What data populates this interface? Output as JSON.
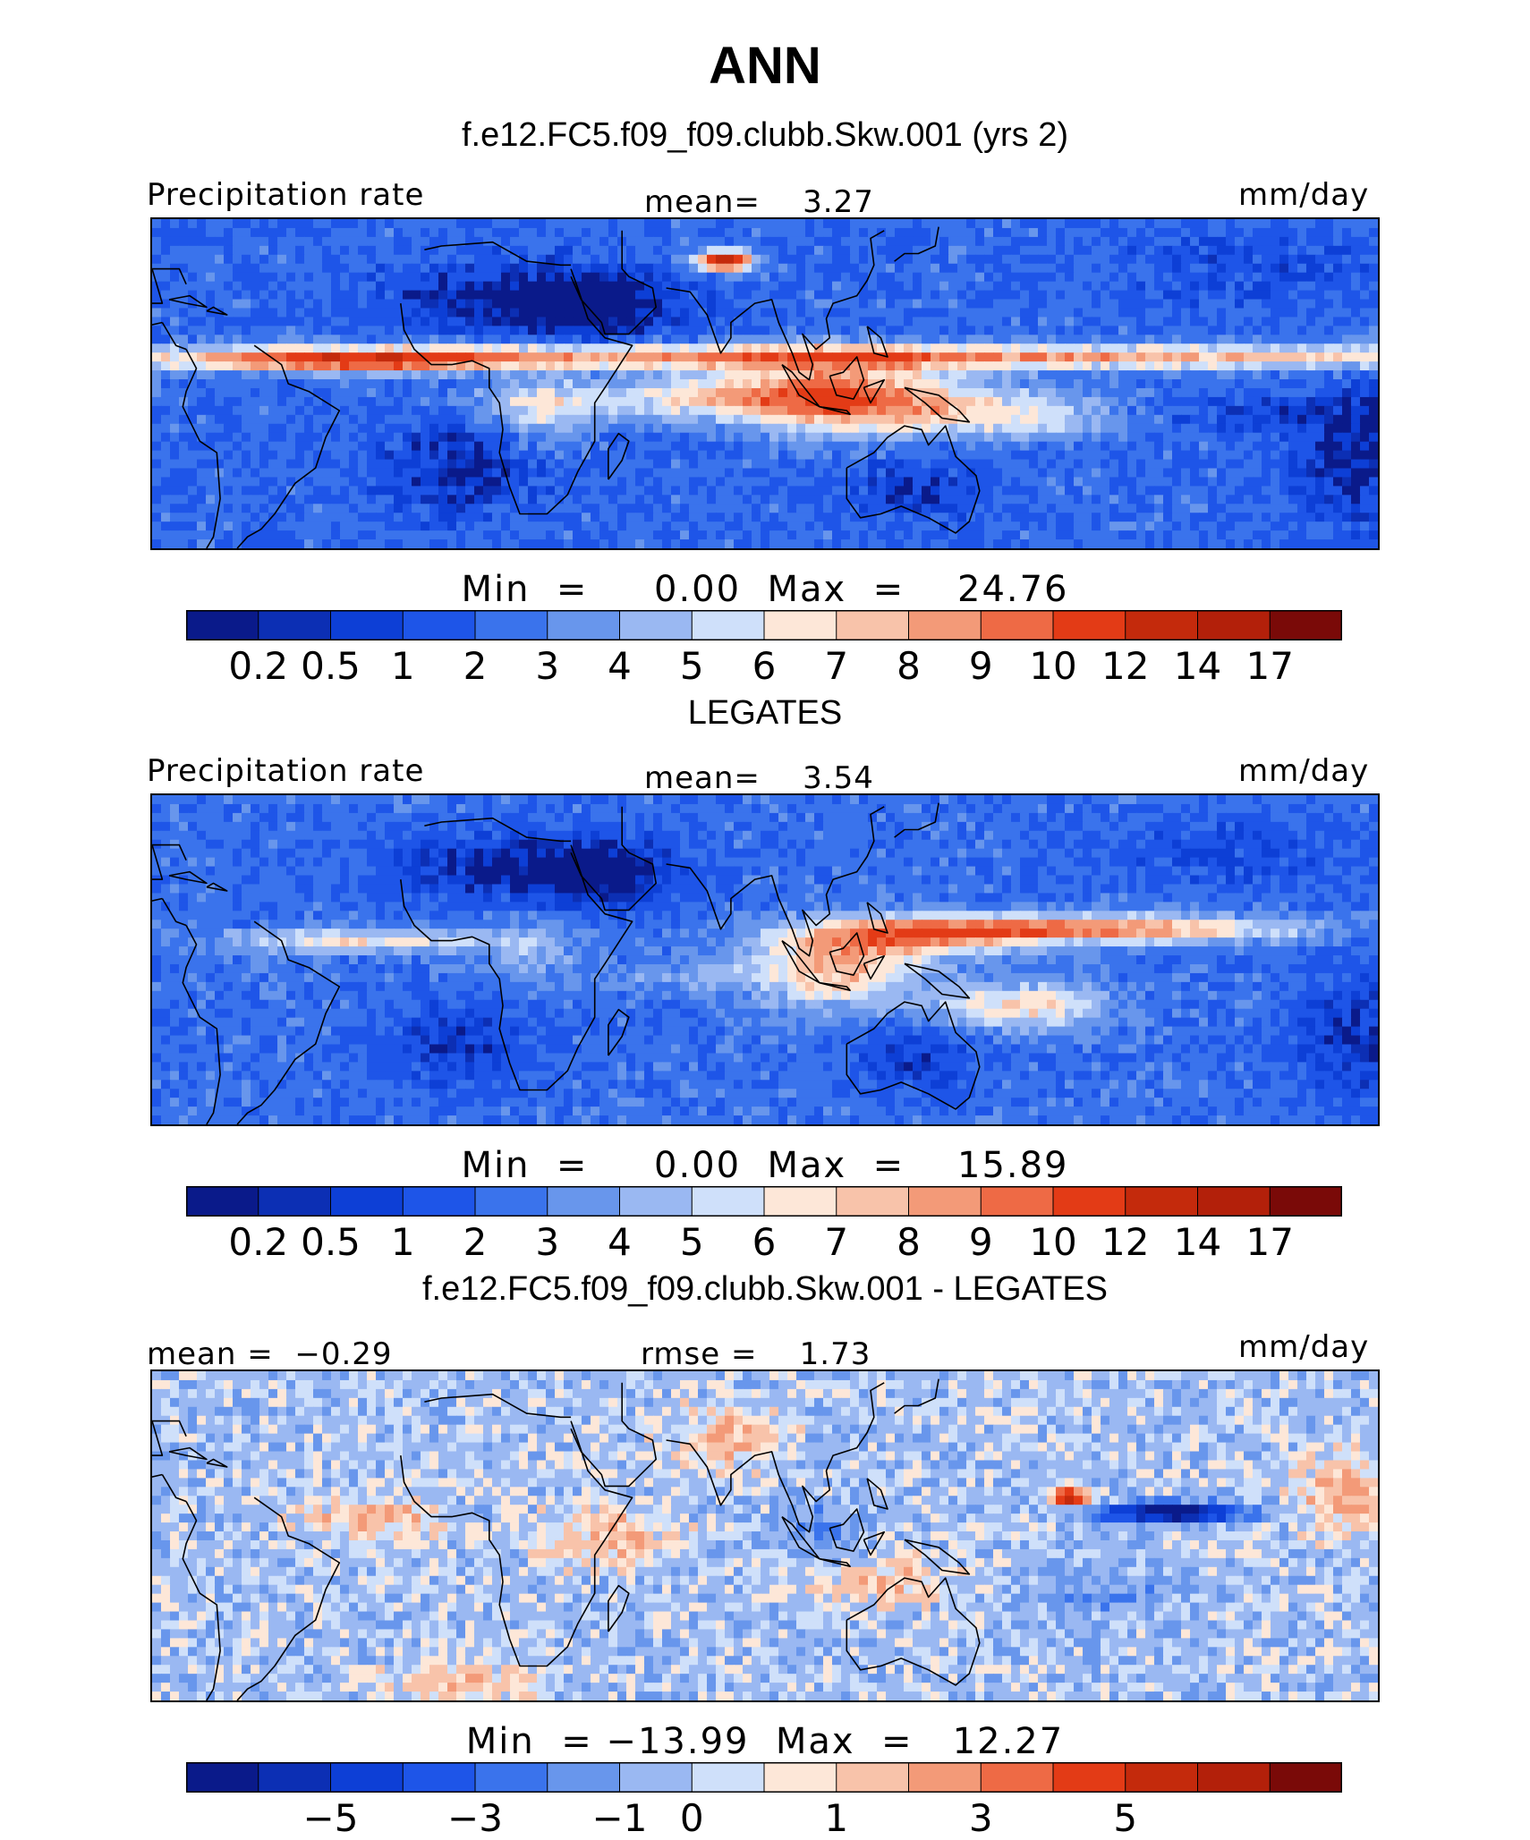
{
  "figure": {
    "title": "ANN"
  },
  "panels": [
    {
      "id": "model",
      "header": "f.e12.FC5.f09_f09.clubb.Skw.001 (yrs 2)",
      "left_label": "Precipitation rate",
      "center_label": "mean=    3.27",
      "units": "mm/day",
      "minmax": "Min  =     0.00  Max  =    24.76",
      "scheme": "seq"
    },
    {
      "id": "obs",
      "header": "LEGATES",
      "left_label": "Precipitation rate",
      "center_label": "mean=    3.54",
      "units": "mm/day",
      "minmax": "Min  =     0.00  Max  =    15.89",
      "scheme": "seq"
    },
    {
      "id": "diff",
      "header": "f.e12.FC5.f09_f09.clubb.Skw.001 - LEGATES",
      "left_label": "mean =  −0.29",
      "center_label": "rmse =    1.73",
      "units": "mm/day",
      "minmax": "Min  = −13.99  Max  =   12.27",
      "scheme": "div"
    }
  ],
  "chart_data": [
    {
      "type": "heatmap",
      "title": "f.e12.FC5.f09_f09.clubb.Skw.001 (yrs 2)",
      "variable": "Precipitation rate",
      "units": "mm/day",
      "mean": 3.27,
      "min": 0.0,
      "max": 24.76,
      "colorbar_levels": [
        0.2,
        0.5,
        1,
        2,
        3,
        4,
        5,
        6,
        7,
        8,
        9,
        10,
        12,
        14,
        17
      ],
      "colorbar_tick_labels": [
        "0.2",
        "0.5",
        "1",
        "2",
        "3",
        "4",
        "5",
        "6",
        "7",
        "8",
        "9",
        "10",
        "12",
        "14",
        "17"
      ]
    },
    {
      "type": "heatmap",
      "title": "LEGATES",
      "variable": "Precipitation rate",
      "units": "mm/day",
      "mean": 3.54,
      "min": 0.0,
      "max": 15.89,
      "colorbar_levels": [
        0.2,
        0.5,
        1,
        2,
        3,
        4,
        5,
        6,
        7,
        8,
        9,
        10,
        12,
        14,
        17
      ],
      "colorbar_tick_labels": [
        "0.2",
        "0.5",
        "1",
        "2",
        "3",
        "4",
        "5",
        "6",
        "7",
        "8",
        "9",
        "10",
        "12",
        "14",
        "17"
      ]
    },
    {
      "type": "heatmap",
      "title": "f.e12.FC5.f09_f09.clubb.Skw.001 - LEGATES",
      "units": "mm/day",
      "mean": -0.29,
      "rmse": 1.73,
      "min": -13.99,
      "max": 12.27,
      "colorbar_levels": [
        -6,
        -5,
        -4,
        -3,
        -2,
        -1,
        0,
        0.5,
        1,
        2,
        3,
        4,
        5,
        6
      ],
      "colorbar_tick_labels": [
        "−5",
        "−3",
        "−1",
        "0",
        "1",
        "3",
        "5"
      ]
    }
  ],
  "colors": {
    "seq": [
      "#0a1a8a",
      "#0c2fb4",
      "#0d3fd6",
      "#1e55e8",
      "#3a73ec",
      "#6896ec",
      "#9ab8f2",
      "#cfe0fa",
      "#fde7d8",
      "#f8c3aa",
      "#f39a78",
      "#ee6a45",
      "#e33b16",
      "#c42a0c",
      "#b3200a",
      "#7a0a08"
    ],
    "div": [
      "#0a1a8a",
      "#0c2fb4",
      "#0d3fd6",
      "#1e55e8",
      "#3a73ec",
      "#6896ec",
      "#9ab8f2",
      "#cfe0fa",
      "#fde7d8",
      "#f8c3aa",
      "#f39a78",
      "#ee6a45",
      "#e33b16",
      "#c42a0c",
      "#b3200a",
      "#7a0a08"
    ]
  }
}
